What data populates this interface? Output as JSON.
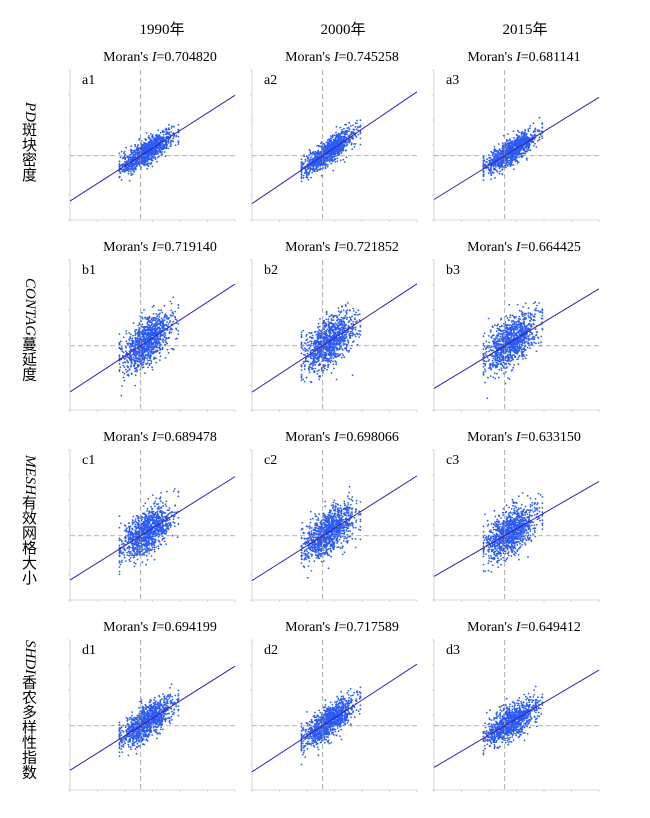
{
  "columns": [
    "1990年",
    "2000年",
    "2015年"
  ],
  "rows": [
    {
      "label_cn": "斑块密度",
      "label_en": "PD"
    },
    {
      "label_cn": "蔓延度",
      "label_en": "CONTAG"
    },
    {
      "label_cn": "有效网格大小",
      "label_en": "MESH"
    },
    {
      "label_cn": "香农多样性指数",
      "label_en": "SHDI"
    }
  ],
  "style": {
    "point_color": "#2b5cf5",
    "line_color": "#3b1fa8",
    "guide_color": "#999999"
  },
  "chart_data": [
    {
      "type": "scatter",
      "panel": "a1",
      "title_prefix": "Moran's ",
      "title_stat": "I",
      "title_value": "=0.704820",
      "slope": 0.70482,
      "spread": 0.28,
      "xlim": [
        -3,
        4
      ],
      "ylim": [
        -3,
        4
      ]
    },
    {
      "type": "scatter",
      "panel": "a2",
      "title_prefix": "Moran's ",
      "title_stat": "I",
      "title_value": "=0.745258",
      "slope": 0.745258,
      "spread": 0.28,
      "xlim": [
        -3,
        4
      ],
      "ylim": [
        -3,
        4
      ]
    },
    {
      "type": "scatter",
      "panel": "a3",
      "title_prefix": "Moran's ",
      "title_stat": "I",
      "title_value": "=0.681141",
      "slope": 0.681141,
      "spread": 0.28,
      "xlim": [
        -3,
        4
      ],
      "ylim": [
        -3,
        4
      ]
    },
    {
      "type": "scatter",
      "panel": "b1",
      "title_prefix": "Moran's ",
      "title_stat": "I",
      "title_value": "=0.719140",
      "slope": 0.71914,
      "spread": 0.55,
      "xlim": [
        -3,
        4
      ],
      "ylim": [
        -3,
        4
      ]
    },
    {
      "type": "scatter",
      "panel": "b2",
      "title_prefix": "Moran's ",
      "title_stat": "I",
      "title_value": "=0.721852",
      "slope": 0.721852,
      "spread": 0.55,
      "xlim": [
        -3,
        4
      ],
      "ylim": [
        -3,
        4
      ]
    },
    {
      "type": "scatter",
      "panel": "b3",
      "title_prefix": "Moran's ",
      "title_stat": "I",
      "title_value": "=0.664425",
      "slope": 0.664425,
      "spread": 0.55,
      "xlim": [
        -3,
        4
      ],
      "ylim": [
        -3,
        4
      ]
    },
    {
      "type": "scatter",
      "panel": "c1",
      "title_prefix": "Moran's ",
      "title_stat": "I",
      "title_value": "=0.689478",
      "slope": 0.689478,
      "spread": 0.5,
      "xlim": [
        -3,
        4
      ],
      "ylim": [
        -3,
        4
      ]
    },
    {
      "type": "scatter",
      "panel": "c2",
      "title_prefix": "Moran's ",
      "title_stat": "I",
      "title_value": "=0.698066",
      "slope": 0.698066,
      "spread": 0.5,
      "xlim": [
        -3,
        4
      ],
      "ylim": [
        -3,
        4
      ]
    },
    {
      "type": "scatter",
      "panel": "c3",
      "title_prefix": "Moran's ",
      "title_stat": "I",
      "title_value": "=0.633150",
      "slope": 0.63315,
      "spread": 0.5,
      "xlim": [
        -3,
        4
      ],
      "ylim": [
        -3,
        4
      ]
    },
    {
      "type": "scatter",
      "panel": "d1",
      "title_prefix": "Moran's ",
      "title_stat": "I",
      "title_value": "=0.694199",
      "slope": 0.694199,
      "spread": 0.38,
      "xlim": [
        -3,
        4
      ],
      "ylim": [
        -3,
        4
      ]
    },
    {
      "type": "scatter",
      "panel": "d2",
      "title_prefix": "Moran's ",
      "title_stat": "I",
      "title_value": "=0.717589",
      "slope": 0.717589,
      "spread": 0.38,
      "xlim": [
        -3,
        4
      ],
      "ylim": [
        -3,
        4
      ]
    },
    {
      "type": "scatter",
      "panel": "d3",
      "title_prefix": "Moran's ",
      "title_stat": "I",
      "title_value": "=0.649412",
      "slope": 0.649412,
      "spread": 0.38,
      "xlim": [
        -3,
        4
      ],
      "ylim": [
        -3,
        4
      ]
    }
  ]
}
